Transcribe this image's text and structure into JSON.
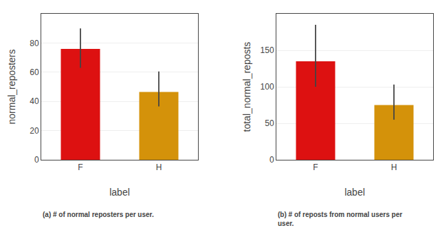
{
  "chart_data": [
    {
      "type": "bar",
      "categories": [
        "F",
        "H"
      ],
      "values": [
        76.0,
        46.5
      ],
      "errors_upper": [
        14.0,
        14.0
      ],
      "errors_lower": [
        13.0,
        10.0
      ],
      "colors": [
        "#dd1111",
        "#d4920a"
      ],
      "xlabel": "label",
      "ylabel": "normal_reposters",
      "ylim": [
        0,
        100
      ],
      "yticks": [
        0,
        20,
        40,
        60,
        80
      ],
      "grid": true,
      "caption": "(a) # of normal reposters per user."
    },
    {
      "type": "bar",
      "categories": [
        "F",
        "H"
      ],
      "values": [
        135.0,
        75.0
      ],
      "errors_upper": [
        50.0,
        28.0
      ],
      "errors_lower": [
        35.0,
        20.0
      ],
      "colors": [
        "#dd1111",
        "#d4920a"
      ],
      "xlabel": "label",
      "ylabel": "total_normal_reposts",
      "ylim": [
        0,
        200
      ],
      "yticks": [
        0,
        50,
        100,
        150
      ],
      "grid": true,
      "caption": "(b) # of reposts from normal users per\nuser."
    }
  ]
}
